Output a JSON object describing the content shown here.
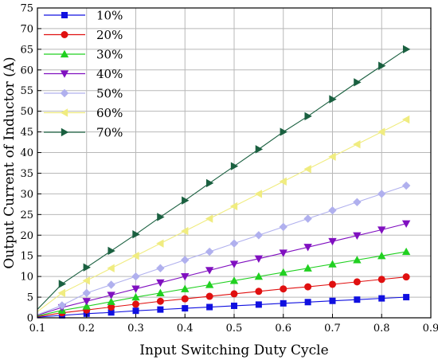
{
  "chart_data": {
    "type": "line",
    "xlabel": "Input Switching Duty Cycle",
    "ylabel": "Output Current of Inductor (A)",
    "xlim": [
      0.1,
      0.9
    ],
    "ylim": [
      0,
      75
    ],
    "xticks": [
      "0.1",
      "0.2",
      "0.3",
      "0.4",
      "0.5",
      "0.6",
      "0.7",
      "0.8",
      "0.9"
    ],
    "yticks": [
      "0",
      "5",
      "10",
      "15",
      "20",
      "25",
      "30",
      "35",
      "40",
      "45",
      "50",
      "55",
      "60",
      "65",
      "70",
      "75"
    ],
    "grid": true,
    "legend_position": "top-left",
    "x": [
      0.15,
      0.2,
      0.25,
      0.3,
      0.35,
      0.4,
      0.45,
      0.5,
      0.55,
      0.6,
      0.65,
      0.7,
      0.75,
      0.8,
      0.85
    ],
    "series": [
      {
        "name": "10%",
        "color": "#1010e0",
        "marker": "square",
        "values": [
          0.6,
          1.0,
          1.3,
          1.7,
          2.0,
          2.3,
          2.6,
          2.9,
          3.2,
          3.5,
          3.8,
          4.1,
          4.4,
          4.7,
          5.0
        ]
      },
      {
        "name": "20%",
        "color": "#e01010",
        "marker": "circle",
        "values": [
          1.2,
          1.9,
          2.6,
          3.3,
          4.0,
          4.6,
          5.2,
          5.8,
          6.4,
          7.0,
          7.5,
          8.1,
          8.7,
          9.3,
          9.9
        ]
      },
      {
        "name": "30%",
        "color": "#20d020",
        "marker": "triangle-up",
        "values": [
          1.8,
          2.8,
          3.9,
          5.0,
          6.0,
          7.0,
          8.0,
          9.0,
          10.0,
          11.0,
          12.0,
          13.0,
          14.0,
          15.0,
          16.0
        ]
      },
      {
        "name": "40%",
        "color": "#8010c0",
        "marker": "triangle-down",
        "values": [
          2.5,
          4.0,
          5.5,
          7.0,
          8.5,
          10.0,
          11.5,
          13.0,
          14.3,
          15.7,
          17.1,
          18.5,
          19.9,
          21.3,
          22.8
        ]
      },
      {
        "name": "50%",
        "color": "#b0b0ee",
        "marker": "diamond",
        "values": [
          3.0,
          6.0,
          8.0,
          10.0,
          12.0,
          14.0,
          16.0,
          18.0,
          20.0,
          22.0,
          24.0,
          26.0,
          28.0,
          30.0,
          32.0
        ]
      },
      {
        "name": "60%",
        "color": "#f0ec80",
        "marker": "triangle-left",
        "values": [
          6.0,
          9.0,
          12.0,
          15.0,
          18.0,
          21.0,
          24.0,
          27.0,
          30.0,
          33.0,
          36.0,
          39.0,
          42.0,
          45.0,
          48.0
        ]
      },
      {
        "name": "70%",
        "color": "#1a6040",
        "marker": "triangle-right",
        "values": [
          8.2,
          12.2,
          16.2,
          20.2,
          24.4,
          28.4,
          32.6,
          36.7,
          40.8,
          45.0,
          48.8,
          52.9,
          57.0,
          61.0,
          65.0
        ]
      }
    ]
  }
}
